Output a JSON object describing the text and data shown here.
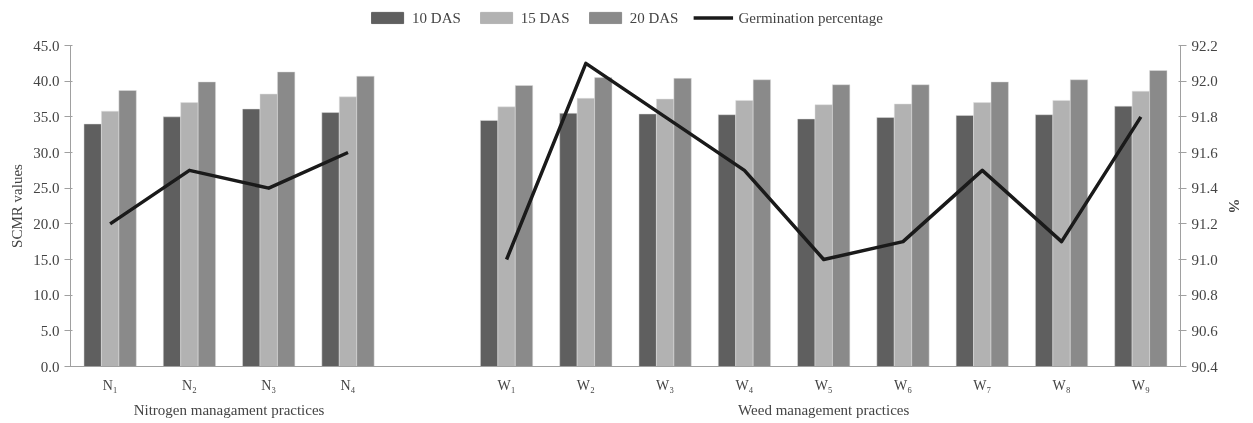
{
  "chart_data": {
    "type": "bar",
    "categories": [
      "N₁",
      "N₂",
      "N₃",
      "N₄",
      null,
      "W₁",
      "W₂",
      "W₃",
      "W₄",
      "W₅",
      "W₆",
      "W₇",
      "W₈",
      "W₉"
    ],
    "series": [
      {
        "name": "10 DAS",
        "color": "#5f5f5f",
        "values": [
          34.0,
          35.0,
          36.1,
          35.6,
          null,
          34.5,
          35.5,
          35.4,
          35.3,
          34.7,
          34.9,
          35.2,
          35.3,
          36.5
        ]
      },
      {
        "name": "15 DAS",
        "color": "#b2b2b2",
        "values": [
          35.8,
          37.0,
          38.2,
          37.8,
          null,
          36.4,
          37.6,
          37.5,
          37.3,
          36.7,
          36.8,
          37.0,
          37.3,
          38.6
        ]
      },
      {
        "name": "20 DAS",
        "color": "#8a8a8a",
        "values": [
          38.7,
          39.9,
          41.3,
          40.7,
          null,
          39.4,
          40.5,
          40.4,
          40.2,
          39.5,
          39.5,
          39.9,
          40.2,
          41.5
        ]
      },
      {
        "name": "Germination percentage",
        "type": "line",
        "axis": "y2",
        "color": "#1a1a1a",
        "values": [
          91.2,
          91.5,
          91.4,
          91.6,
          null,
          91.0,
          92.1,
          91.8,
          91.5,
          91.0,
          91.1,
          91.5,
          91.1,
          91.8
        ]
      }
    ],
    "ylabel": "SCMR values",
    "y2label": "%",
    "ylim": [
      0,
      45
    ],
    "yticks": [
      {
        "value": 0,
        "label": "0.0"
      },
      {
        "value": 5,
        "label": "5.0"
      },
      {
        "value": 10,
        "label": "10.0"
      },
      {
        "value": 15,
        "label": "15.0"
      },
      {
        "value": 20,
        "label": "20.0"
      },
      {
        "value": 25,
        "label": "25.0"
      },
      {
        "value": 30,
        "label": "30.0"
      },
      {
        "value": 35,
        "label": "35.0"
      },
      {
        "value": 40,
        "label": "40.0"
      },
      {
        "value": 45,
        "label": "45.0"
      }
    ],
    "y2lim": [
      90.4,
      92.2
    ],
    "y2ticks": [
      {
        "value": 90.4,
        "label": "90.4"
      },
      {
        "value": 90.6,
        "label": "90.6"
      },
      {
        "value": 90.8,
        "label": "90.8"
      },
      {
        "value": 91.0,
        "label": "91.0"
      },
      {
        "value": 91.2,
        "label": "91.2"
      },
      {
        "value": 91.4,
        "label": "91.4"
      },
      {
        "value": 91.6,
        "label": "91.6"
      },
      {
        "value": 91.8,
        "label": "91.8"
      },
      {
        "value": 92.0,
        "label": "92.0"
      },
      {
        "value": 92.2,
        "label": "92.2"
      }
    ],
    "annotations": [
      "Nitrogen managament practices",
      "Weed management practices"
    ],
    "legend": "top",
    "grid": false
  }
}
